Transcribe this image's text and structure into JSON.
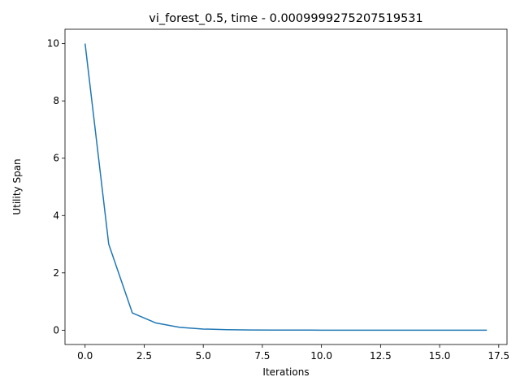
{
  "chart_data": {
    "type": "line",
    "title": "vi_forest_0.5, time - 0.0009999275207519531",
    "xlabel": "Iterations",
    "ylabel": "Utility Span",
    "xlim": [
      -0.85,
      17.85
    ],
    "ylim": [
      -0.5,
      10.5
    ],
    "xticks": [
      0.0,
      2.5,
      5.0,
      7.5,
      10.0,
      12.5,
      15.0,
      17.5
    ],
    "xtick_labels": [
      "0.0",
      "2.5",
      "5.0",
      "7.5",
      "10.0",
      "12.5",
      "15.0",
      "17.5"
    ],
    "yticks": [
      0,
      2,
      4,
      6,
      8,
      10
    ],
    "ytick_labels": [
      "0",
      "2",
      "4",
      "6",
      "8",
      "10"
    ],
    "grid": false,
    "series": [
      {
        "color": "#1f77b4",
        "x": [
          0,
          1,
          2,
          3,
          4,
          5,
          6,
          7,
          8,
          9,
          10,
          11,
          12,
          13,
          14,
          15,
          16,
          17
        ],
        "y": [
          10.0,
          3.0,
          0.6,
          0.25,
          0.1,
          0.04,
          0.018,
          0.008,
          0.004,
          0.002,
          0.001,
          0.0006,
          0.0003,
          0.0002,
          0.0001,
          5e-05,
          3e-05,
          2e-05
        ]
      }
    ]
  }
}
